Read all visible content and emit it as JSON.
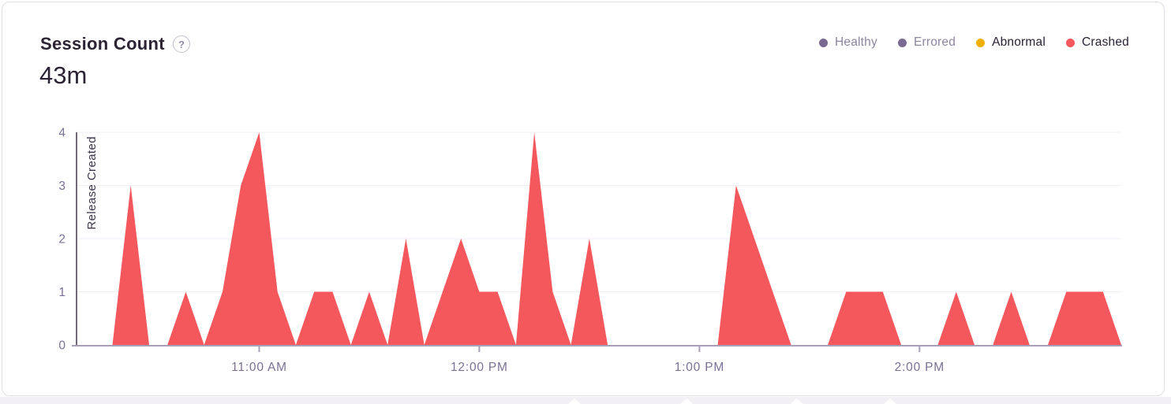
{
  "header": {
    "title": "Session Count",
    "help_icon": "?",
    "value": "43m"
  },
  "legend": {
    "items": [
      {
        "label": "Healthy",
        "color": "#7a6990",
        "muted": true
      },
      {
        "label": "Errored",
        "color": "#7a6990",
        "muted": true
      },
      {
        "label": "Abnormal",
        "color": "#f0b000",
        "muted": false
      },
      {
        "label": "Crashed",
        "color": "#f4575c",
        "muted": false
      }
    ]
  },
  "chart_data": {
    "type": "area",
    "series_name": "Crashed",
    "color": "#f4575c",
    "interval_minutes": 5,
    "x": [
      "10:10 AM",
      "10:15 AM",
      "10:20 AM",
      "10:25 AM",
      "10:30 AM",
      "10:35 AM",
      "10:40 AM",
      "10:45 AM",
      "10:50 AM",
      "10:55 AM",
      "11:00 AM",
      "11:05 AM",
      "11:10 AM",
      "11:15 AM",
      "11:20 AM",
      "11:25 AM",
      "11:30 AM",
      "11:35 AM",
      "11:40 AM",
      "11:45 AM",
      "11:50 AM",
      "11:55 AM",
      "12:00 PM",
      "12:05 PM",
      "12:10 PM",
      "12:15 PM",
      "12:20 PM",
      "12:25 PM",
      "12:30 PM",
      "12:35 PM",
      "12:40 PM",
      "12:45 PM",
      "12:50 PM",
      "12:55 PM",
      "1:00 PM",
      "1:05 PM",
      "1:10 PM",
      "1:15 PM",
      "1:20 PM",
      "1:25 PM",
      "1:30 PM",
      "1:35 PM",
      "1:40 PM",
      "1:45 PM",
      "1:50 PM",
      "1:55 PM",
      "2:00 PM",
      "2:05 PM",
      "2:10 PM",
      "2:15 PM",
      "2:20 PM",
      "2:25 PM",
      "2:30 PM",
      "2:35 PM",
      "2:40 PM",
      "2:45 PM",
      "2:50 PM",
      "2:55 PM"
    ],
    "values": [
      0,
      0,
      0,
      3,
      0,
      0,
      1,
      0,
      1,
      3,
      4,
      1,
      0,
      1,
      1,
      0,
      1,
      0,
      2,
      0,
      1,
      2,
      1,
      1,
      0,
      4,
      1,
      0,
      2,
      0,
      0,
      0,
      0,
      0,
      0,
      0,
      3,
      2,
      1,
      0,
      0,
      0,
      1,
      1,
      1,
      0,
      0,
      0,
      1,
      0,
      0,
      1,
      0,
      0,
      1,
      1,
      1,
      0
    ],
    "ylim": [
      0,
      4
    ],
    "yticks": [
      0,
      1,
      2,
      3,
      4
    ],
    "xticks": [
      "11:00 AM",
      "12:00 PM",
      "1:00 PM",
      "2:00 PM"
    ],
    "grid": "horizontal",
    "legend_position": "top-right",
    "annotation": {
      "label": "Release Created",
      "x": "10:10 AM"
    }
  },
  "colors": {
    "healthy": "#7a6990",
    "errored": "#7a6990",
    "abnormal": "#f0b000",
    "crashed": "#f4575c"
  }
}
